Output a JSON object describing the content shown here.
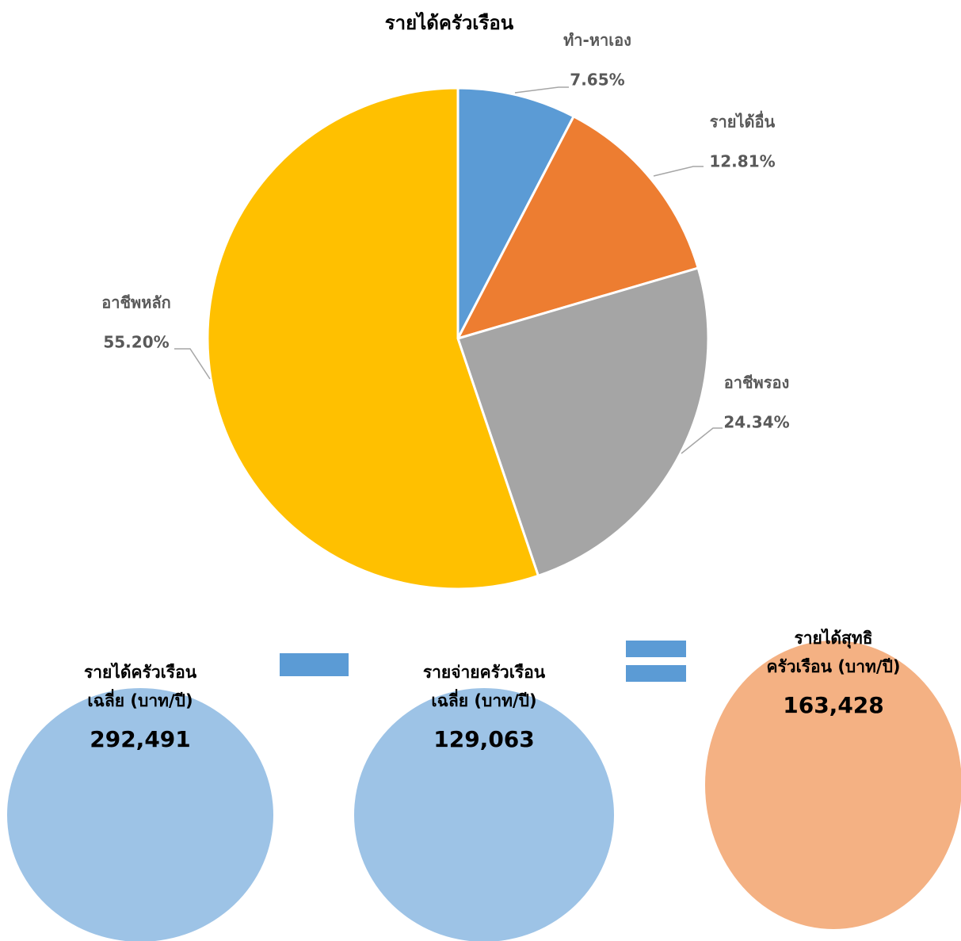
{
  "chart_data": {
    "type": "pie",
    "title": "รายได้ครัวเรือน",
    "categories": [
      "ทำ-หาเอง",
      "รายได้อื่น",
      "อาชีพรอง",
      "อาชีพหลัก"
    ],
    "values": [
      7.65,
      12.81,
      24.34,
      55.2
    ],
    "value_labels": [
      "7.65%",
      "12.81%",
      "24.34%",
      "55.20%"
    ],
    "colors": [
      "#5b9bd5",
      "#ed7d31",
      "#a5a5a5",
      "#ffc000"
    ]
  },
  "summary": [
    {
      "lines": [
        "รายได้ครัวเรือน",
        "เฉลี่ย (บาท/ปี)"
      ],
      "amount": "292,491"
    },
    {
      "lines": [
        "รายจ่ายครัวเรือน",
        "เฉลี่ย (บาท/ปี)"
      ],
      "amount": "129,063"
    },
    {
      "lines": [
        "รายได้สุทธิ",
        "ครัวเรือน (บาท/ปี)"
      ],
      "amount": "163,428"
    }
  ]
}
